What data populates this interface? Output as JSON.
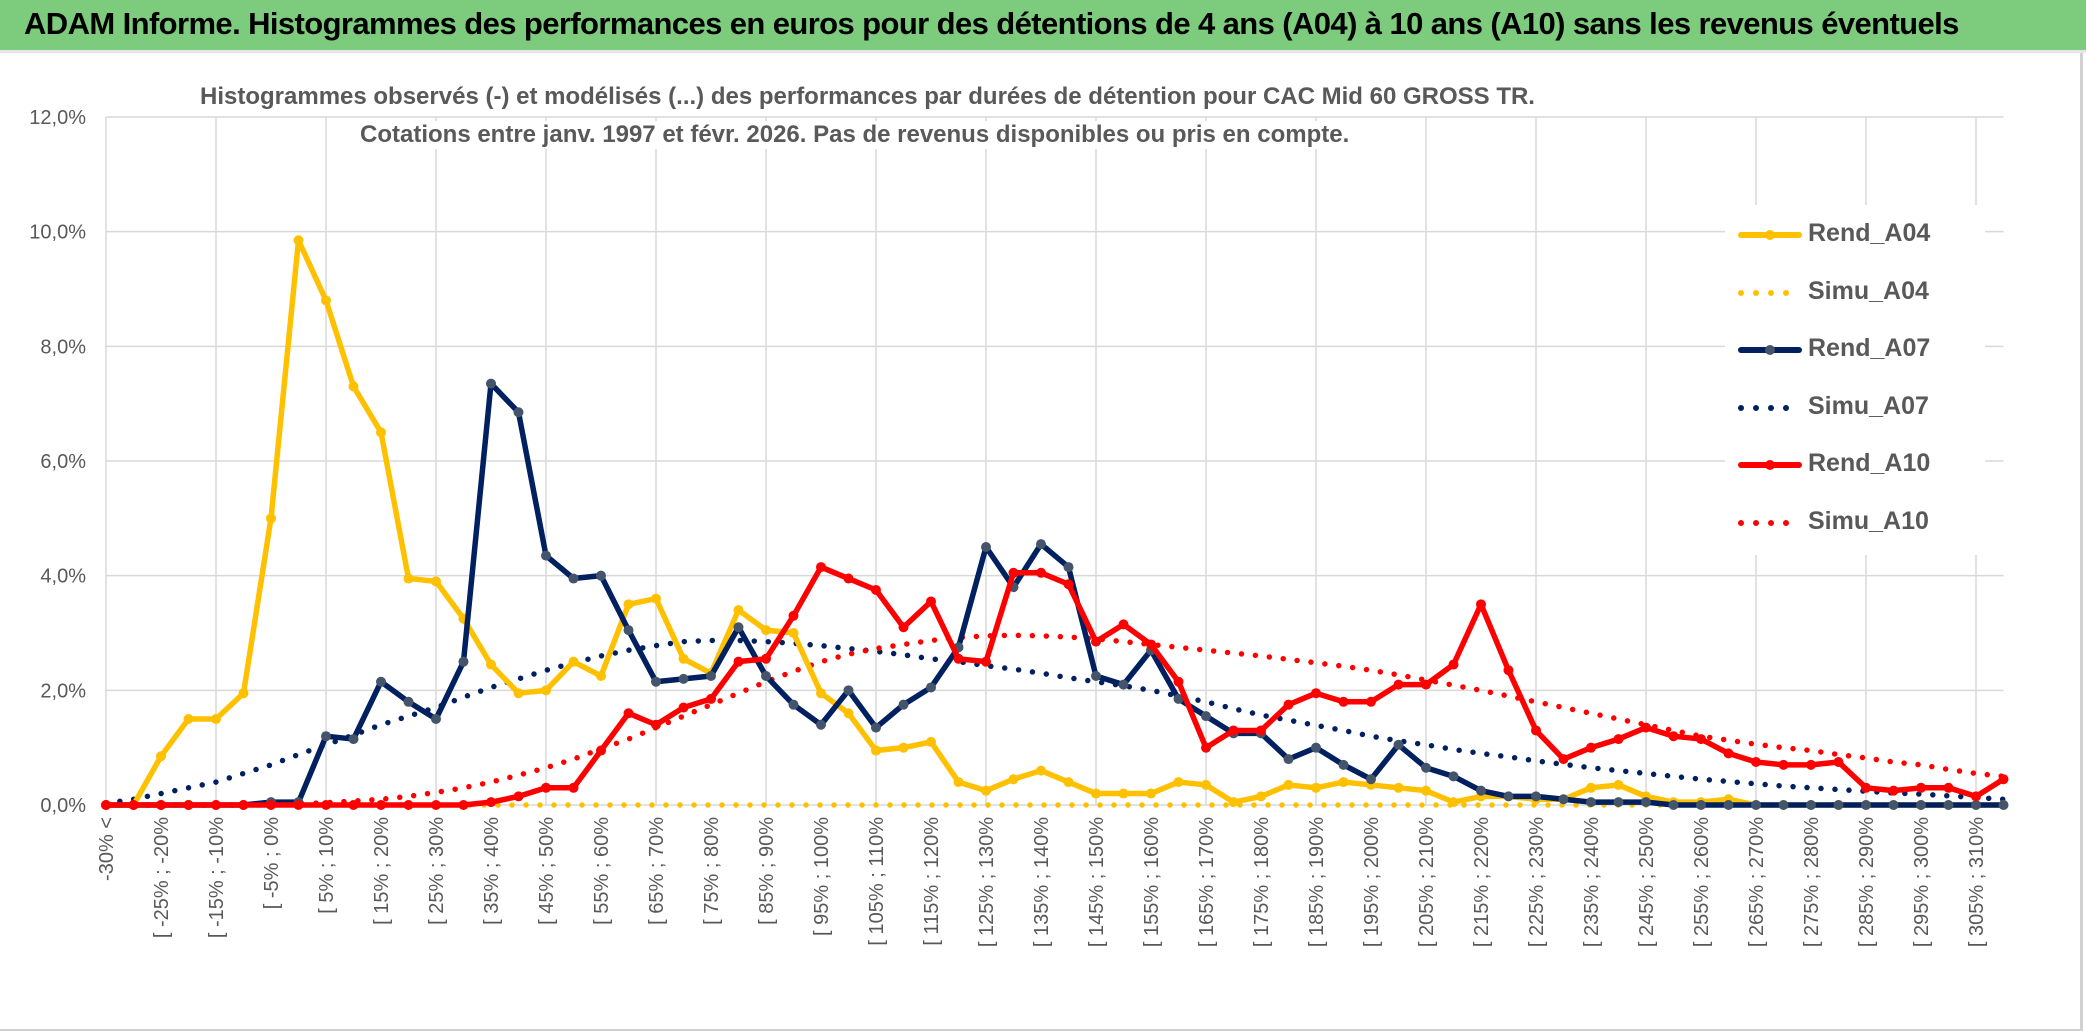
{
  "header": {
    "title": "ADAM Informe. Histogrammes des performances en euros pour des détentions de 4 ans (A04) à 10 ans (A10) sans les revenus éventuels"
  },
  "chart_data": {
    "type": "line",
    "title": "Histogrammes observés (-) et modélisés (...) des performances par durées de détention pour CAC Mid 60 GROSS TR.",
    "subtitle": "Cotations entre janv. 1997 et févr. 2026. Pas de revenus disponibles ou pris en compte.",
    "xlabel": "",
    "ylabel": "",
    "category_count": 70,
    "x_tick_labels": [
      "-30% <",
      "[ -25% ; -20%",
      "[ -15% ; -10%",
      "[ -5% ; 0%",
      "[ 5% ; 10%",
      "[ 15% ; 20%",
      "[ 25% ; 30%",
      "[ 35% ; 40%",
      "[ 45% ; 50%",
      "[ 55% ; 60%",
      "[ 65% ; 70%",
      "[ 75% ; 80%",
      "[ 85% ; 90%",
      "[ 95% ; 100%",
      "[ 105% ; 110%",
      "[ 115% ; 120%",
      "[ 125% ; 130%",
      "[ 135% ; 140%",
      "[ 145% ; 150%",
      "[ 155% ; 160%",
      "[ 165% ; 170%",
      "[ 175% ; 180%",
      "[ 185% ; 190%",
      "[ 195% ; 200%",
      "[ 205% ; 210%",
      "[ 215% ; 220%",
      "[ 225% ; 230%",
      "[ 235% ; 240%",
      "[ 245% ; 250%",
      "[ 255% ; 260%",
      "[ 265% ; 270%",
      "[ 275% ; 280%",
      "[ 285% ; 290%",
      "[ 295% ; 300%",
      "[ 305% ; 310%"
    ],
    "x_tick_every": 2,
    "y_ticks": [
      "0,0%",
      "2,0%",
      "4,0%",
      "6,0%",
      "8,0%",
      "10,0%",
      "12,0%"
    ],
    "ylim": [
      0,
      12
    ],
    "y_unit": "%",
    "grid": true,
    "legend_position": "right",
    "series": [
      {
        "name": "Rend_A04",
        "style": "solid-marker",
        "color": "#ffc000",
        "values": [
          0,
          0,
          0.85,
          1.5,
          1.5,
          1.95,
          5.0,
          9.85,
          8.8,
          7.3,
          6.5,
          3.95,
          3.9,
          3.25,
          2.45,
          1.95,
          2.0,
          2.5,
          2.25,
          3.5,
          3.6,
          2.55,
          2.3,
          3.4,
          3.05,
          3.0,
          1.95,
          1.6,
          0.95,
          1.0,
          1.1,
          0.4,
          0.25,
          0.45,
          0.6,
          0.4,
          0.2,
          0.2,
          0.2,
          0.4,
          0.35,
          0.05,
          0.15,
          0.35,
          0.3,
          0.4,
          0.35,
          0.3,
          0.25,
          0.05,
          0.15,
          0.15,
          0.1,
          0.1,
          0.3,
          0.35,
          0.15,
          0.05,
          0.05,
          0.1,
          0,
          0,
          0,
          0,
          0,
          0,
          0,
          0,
          0,
          0
        ]
      },
      {
        "name": "Simu_A04",
        "style": "dotted",
        "color": "#ffc000",
        "values": [
          0,
          0,
          0,
          0,
          0,
          0,
          0,
          0,
          0,
          0,
          0,
          0,
          0,
          0,
          0,
          0,
          0,
          0,
          0,
          0,
          0,
          0,
          0,
          0,
          0,
          0,
          0,
          0,
          0,
          0,
          0,
          0,
          0,
          0,
          0,
          0,
          0,
          0,
          0,
          0,
          0,
          0,
          0,
          0,
          0,
          0,
          0,
          0,
          0,
          0,
          0,
          0,
          0,
          0,
          0,
          0,
          0,
          0,
          0,
          0,
          0,
          0,
          0,
          0,
          0,
          0,
          0,
          0,
          0,
          0
        ]
      },
      {
        "name": "Rend_A07",
        "style": "solid-marker",
        "color": "#002060",
        "marker_color": "#44546a",
        "values": [
          0,
          0,
          0,
          0,
          0,
          0,
          0.05,
          0.05,
          1.2,
          1.15,
          2.15,
          1.8,
          1.5,
          2.5,
          7.35,
          6.85,
          4.35,
          3.95,
          4.0,
          3.05,
          2.15,
          2.2,
          2.25,
          3.1,
          2.25,
          1.75,
          1.4,
          2.0,
          1.35,
          1.75,
          2.05,
          2.75,
          4.5,
          3.8,
          4.55,
          4.15,
          2.25,
          2.1,
          2.7,
          1.85,
          1.55,
          1.25,
          1.25,
          0.8,
          1.0,
          0.7,
          0.45,
          1.05,
          0.65,
          0.5,
          0.25,
          0.15,
          0.15,
          0.1,
          0.05,
          0.05,
          0.05,
          0,
          0,
          0,
          0,
          0,
          0,
          0,
          0,
          0,
          0,
          0,
          0,
          0
        ]
      },
      {
        "name": "Simu_A07",
        "style": "dotted",
        "color": "#002060",
        "values": [
          0.03,
          0.1,
          0.2,
          0.3,
          0.4,
          0.55,
          0.7,
          0.88,
          1.05,
          1.22,
          1.4,
          1.55,
          1.7,
          1.88,
          2.05,
          2.2,
          2.35,
          2.48,
          2.6,
          2.7,
          2.78,
          2.85,
          2.87,
          2.87,
          2.85,
          2.82,
          2.78,
          2.73,
          2.68,
          2.62,
          2.55,
          2.5,
          2.43,
          2.37,
          2.3,
          2.22,
          2.15,
          2.08,
          2.0,
          1.9,
          1.8,
          1.68,
          1.57,
          1.48,
          1.39,
          1.3,
          1.2,
          1.12,
          1.05,
          0.97,
          0.9,
          0.84,
          0.77,
          0.71,
          0.65,
          0.6,
          0.55,
          0.5,
          0.45,
          0.41,
          0.37,
          0.33,
          0.3,
          0.27,
          0.24,
          0.21,
          0.19,
          0.16,
          0.13,
          0.1
        ]
      },
      {
        "name": "Rend_A10",
        "style": "solid-marker",
        "color": "#ff0000",
        "values": [
          0,
          0,
          0,
          0,
          0,
          0,
          0,
          0,
          0,
          0,
          0,
          0,
          0,
          0,
          0.05,
          0.15,
          0.3,
          0.3,
          0.95,
          1.6,
          1.4,
          1.7,
          1.85,
          2.5,
          2.55,
          3.3,
          4.15,
          3.95,
          3.75,
          3.1,
          3.55,
          2.55,
          2.5,
          4.05,
          4.05,
          3.85,
          2.85,
          3.15,
          2.8,
          2.15,
          1.0,
          1.3,
          1.3,
          1.75,
          1.95,
          1.8,
          1.8,
          2.1,
          2.1,
          2.45,
          3.5,
          2.35,
          1.3,
          0.8,
          1.0,
          1.15,
          1.35,
          1.2,
          1.15,
          0.9,
          0.75,
          0.7,
          0.7,
          0.75,
          0.3,
          0.25,
          0.3,
          0.3,
          0.15,
          0.45
        ]
      },
      {
        "name": "Simu_A10",
        "style": "dotted",
        "color": "#ff0000",
        "values": [
          0,
          0,
          0,
          0,
          0,
          0,
          0.01,
          0.02,
          0.04,
          0.07,
          0.1,
          0.15,
          0.22,
          0.3,
          0.4,
          0.52,
          0.65,
          0.8,
          0.98,
          1.15,
          1.35,
          1.55,
          1.75,
          1.95,
          2.15,
          2.33,
          2.5,
          2.63,
          2.73,
          2.8,
          2.87,
          2.92,
          2.95,
          2.96,
          2.95,
          2.93,
          2.9,
          2.85,
          2.8,
          2.75,
          2.7,
          2.65,
          2.6,
          2.54,
          2.48,
          2.42,
          2.35,
          2.27,
          2.18,
          2.09,
          2.0,
          1.9,
          1.8,
          1.7,
          1.6,
          1.5,
          1.4,
          1.3,
          1.2,
          1.13,
          1.06,
          1.0,
          0.95,
          0.88,
          0.82,
          0.75,
          0.7,
          0.62,
          0.55,
          0.5
        ]
      }
    ]
  }
}
